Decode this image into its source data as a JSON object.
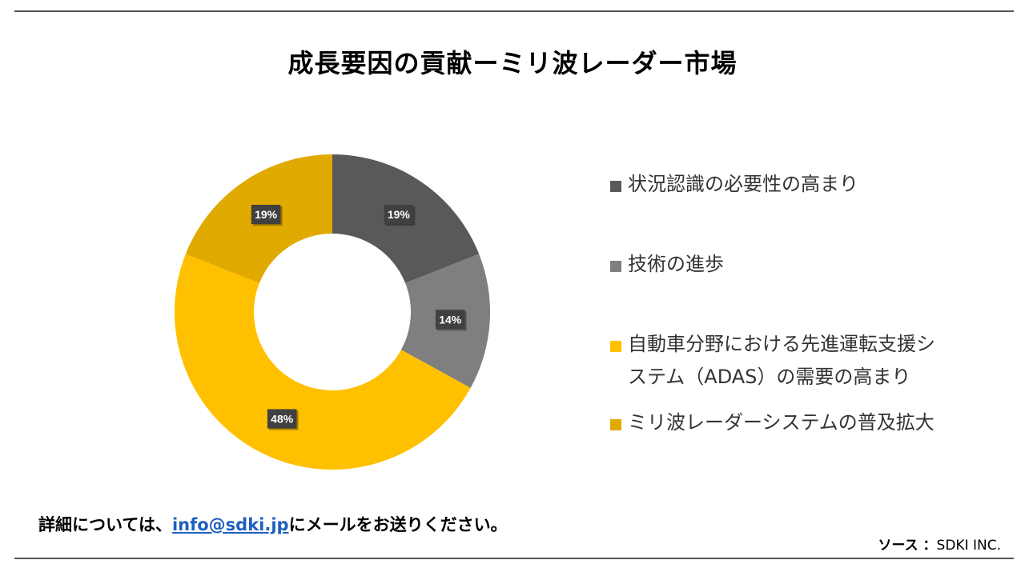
{
  "title": "成長要因の貢献ーミリ波レーダー市場",
  "chart_data": {
    "type": "pie",
    "donut": true,
    "categories": [
      "状況認識の必要性の高まり",
      "技術の進歩",
      "自動車分野における先進運転支援システム（ADAS）の需要の高まり",
      "ミリ波レーダーシステムの普及拡大"
    ],
    "values": [
      19,
      14,
      48,
      19
    ],
    "labels": [
      "19%",
      "14%",
      "48%",
      "19%"
    ],
    "colors": [
      "#595959",
      "#7f7f7f",
      "#ffc000",
      "#e0aa00"
    ],
    "legend_position": "right"
  },
  "legend": [
    {
      "lines": [
        "状況認識の必要性の高まり"
      ]
    },
    {
      "lines": [
        "技術の進歩"
      ]
    },
    {
      "lines": [
        "自動車分野における先進運転支援シ",
        "ステム（ADAS）の需要の高まり"
      ]
    },
    {
      "lines": [
        "ミリ波レーダーシステムの普及拡大"
      ]
    }
  ],
  "footer": {
    "contact_prefix": "詳細については、",
    "email": "info@sdki.jp",
    "contact_suffix": "にメールをお送りください。",
    "source_label": "ソース ：",
    "source_value": "SDKI INC."
  }
}
